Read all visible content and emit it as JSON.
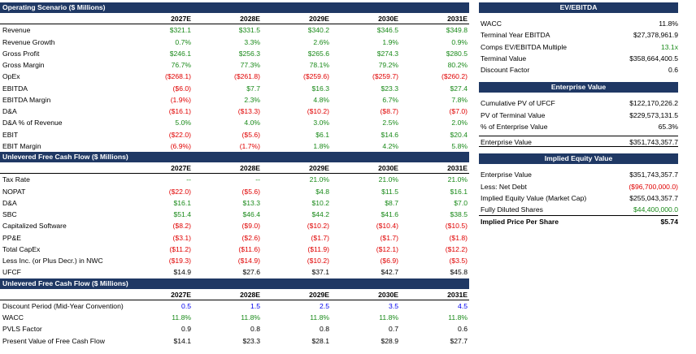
{
  "operating": {
    "title": "Operating Scenario ($ Millions)",
    "years": [
      "2027E",
      "2028E",
      "2029E",
      "2030E",
      "2031E"
    ],
    "rows": [
      {
        "label": "Revenue",
        "values": [
          "$321.1",
          "$331.5",
          "$340.2",
          "$346.5",
          "$349.8"
        ],
        "color": "g"
      },
      {
        "label": "Revenue Growth",
        "values": [
          "0.7%",
          "3.3%",
          "2.6%",
          "1.9%",
          "0.9%"
        ],
        "color": "g"
      },
      {
        "label": "Gross Profit",
        "values": [
          "$246.1",
          "$256.3",
          "$265.6",
          "$274.3",
          "$280.5"
        ],
        "color": "g"
      },
      {
        "label": "Gross Margin",
        "values": [
          "76.7%",
          "77.3%",
          "78.1%",
          "79.2%",
          "80.2%"
        ],
        "color": "g"
      },
      {
        "label": "OpEx",
        "values": [
          "($268.1)",
          "($261.8)",
          "($259.6)",
          "($259.7)",
          "($260.2)"
        ],
        "color": "r"
      },
      {
        "label": "EBITDA",
        "values": [
          "($6.0)",
          "$7.7",
          "$16.3",
          "$23.3",
          "$27.4"
        ],
        "colors": [
          "r",
          "g",
          "g",
          "g",
          "g"
        ]
      },
      {
        "label": "EBITDA Margin",
        "values": [
          "(1.9%)",
          "2.3%",
          "4.8%",
          "6.7%",
          "7.8%"
        ],
        "colors": [
          "r",
          "g",
          "g",
          "g",
          "g"
        ]
      },
      {
        "label": "D&A",
        "values": [
          "($16.1)",
          "($13.3)",
          "($10.2)",
          "($8.7)",
          "($7.0)"
        ],
        "color": "r"
      },
      {
        "label": "D&A % of Revenue",
        "values": [
          "5.0%",
          "4.0%",
          "3.0%",
          "2.5%",
          "2.0%"
        ],
        "color": "g"
      },
      {
        "label": "EBIT",
        "values": [
          "($22.0)",
          "($5.6)",
          "$6.1",
          "$14.6",
          "$20.4"
        ],
        "colors": [
          "r",
          "r",
          "g",
          "g",
          "g"
        ]
      },
      {
        "label": "EBIT Margin",
        "values": [
          "(6.9%)",
          "(1.7%)",
          "1.8%",
          "4.2%",
          "5.8%"
        ],
        "colors": [
          "r",
          "r",
          "g",
          "g",
          "g"
        ]
      }
    ]
  },
  "ufcf": {
    "title": "Unlevered Free Cash Flow ($ Millions)",
    "years": [
      "2027E",
      "2028E",
      "2029E",
      "2030E",
      "2031E"
    ],
    "rows": [
      {
        "label": "Tax Rate",
        "values": [
          "--",
          "--",
          "21.0%",
          "21.0%",
          "21.0%"
        ],
        "color": "g"
      },
      {
        "label": "NOPAT",
        "values": [
          "($22.0)",
          "($5.6)",
          "$4.8",
          "$11.5",
          "$16.1"
        ],
        "colors": [
          "r",
          "r",
          "g",
          "g",
          "g"
        ]
      },
      {
        "label": "D&A",
        "values": [
          "$16.1",
          "$13.3",
          "$10.2",
          "$8.7",
          "$7.0"
        ],
        "color": "g"
      },
      {
        "label": "SBC",
        "values": [
          "$51.4",
          "$46.4",
          "$44.2",
          "$41.6",
          "$38.5"
        ],
        "color": "g"
      },
      {
        "label": "Capitalized Software",
        "values": [
          "($8.2)",
          "($9.0)",
          "($10.2)",
          "($10.4)",
          "($10.5)"
        ],
        "color": "r"
      },
      {
        "label": "PP&E",
        "values": [
          "($3.1)",
          "($2.6)",
          "($1.7)",
          "($1.7)",
          "($1.8)"
        ],
        "color": "r"
      },
      {
        "label": "Total CapEx",
        "values": [
          "($11.2)",
          "($11.6)",
          "($11.9)",
          "($12.1)",
          "($12.2)"
        ],
        "color": "r"
      },
      {
        "label": "Less Inc. (or Plus Decr.) in NWC",
        "values": [
          "($19.3)",
          "($14.9)",
          "($10.2)",
          "($6.9)",
          "($3.5)"
        ],
        "color": "r"
      },
      {
        "label": "UFCF",
        "values": [
          "$14.9",
          "$27.6",
          "$37.1",
          "$42.7",
          "$45.8"
        ],
        "color": "k"
      }
    ]
  },
  "discount": {
    "title": "Unlevered Free Cash Flow ($ Millions)",
    "years": [
      "2027E",
      "2028E",
      "2029E",
      "2030E",
      "2031E"
    ],
    "rows": [
      {
        "label": "Discount Period (Mid-Year Convention)",
        "values": [
          "0.5",
          "1.5",
          "2.5",
          "3.5",
          "4.5"
        ],
        "color": "b"
      },
      {
        "label": "WACC",
        "values": [
          "11.8%",
          "11.8%",
          "11.8%",
          "11.8%",
          "11.8%"
        ],
        "color": "g"
      },
      {
        "label": "PVLS Factor",
        "values": [
          "0.9",
          "0.8",
          "0.8",
          "0.7",
          "0.6"
        ],
        "color": "k"
      },
      {
        "label": "Present Value of Free Cash Flow",
        "values": [
          "$14.1",
          "$23.3",
          "$28.1",
          "$28.9",
          "$27.7"
        ],
        "color": "k"
      }
    ]
  },
  "ev_ebitda": {
    "title": "EV/EBITDA",
    "rows": [
      {
        "label": "WACC",
        "value": "11.8%",
        "color": "k"
      },
      {
        "label": "Terminal Year EBITDA",
        "value": "$27,378,961.9",
        "color": "k"
      },
      {
        "label": "Comps EV/EBITDA Multiple",
        "value": "13.1x",
        "color": "g"
      },
      {
        "label": "Terminal Value",
        "value": "$358,664,400.5",
        "color": "k"
      },
      {
        "label": "Discount Factor",
        "value": "0.6",
        "color": "k"
      }
    ]
  },
  "enterprise": {
    "title": "Enterprise Value",
    "rows": [
      {
        "label": "Cumulative PV of UFCF",
        "value": "$122,170,226.2",
        "color": "k"
      },
      {
        "label": "PV of Terminal Value",
        "value": "$229,573,131.5",
        "color": "k"
      },
      {
        "label": "% of Enterprise Value",
        "value": "65.3%",
        "color": "k"
      }
    ],
    "total_label": "Enterprise Value",
    "total_value": "$351,743,357.7"
  },
  "equity": {
    "title": "Implied Equity Value",
    "rows": [
      {
        "label": "Enterprise Value",
        "value": "$351,743,357.7",
        "color": "k"
      },
      {
        "label": "Less: Net Debt",
        "value": "($96,700,000.0)",
        "color": "r"
      },
      {
        "label": "Implied Equity Value (Market Cap)",
        "value": "$255,043,357.7",
        "color": "k"
      },
      {
        "label": "Fully Diluted Shares",
        "value": "$44,400,000.0",
        "color": "g"
      }
    ],
    "price_label": "Implied Price Per Share",
    "price_value": "$5.74"
  }
}
